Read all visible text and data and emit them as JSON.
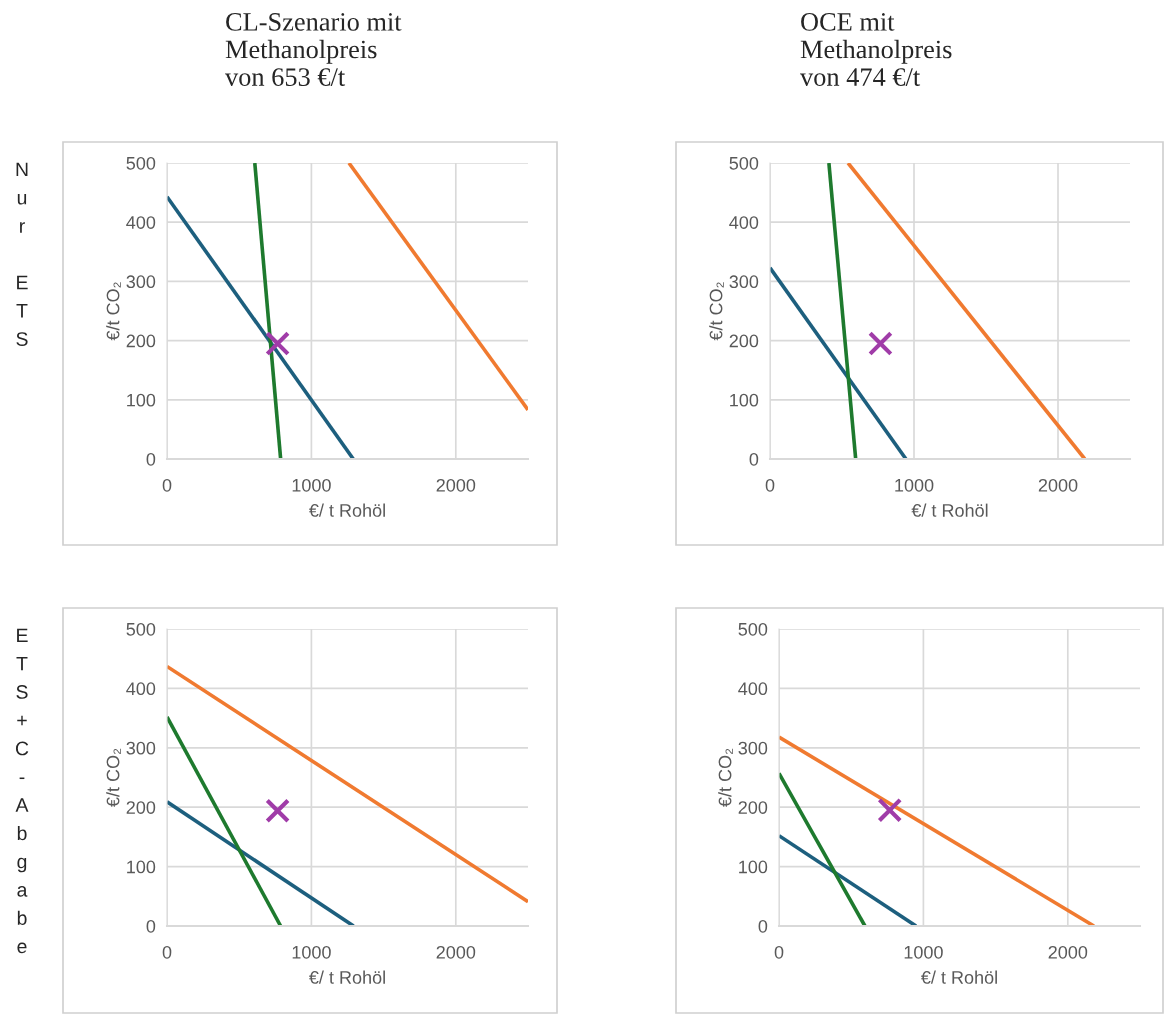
{
  "chart_data": [
    {
      "type": "line",
      "title": "CL-Szenario mit\nMethanolpreis\nvon 653 €/t",
      "xlabel": "€/ t Rohöl",
      "ylabel": "€/t CO₂",
      "annotations": [
        "Nur ETS"
      ],
      "xlim": [
        0,
        2500
      ],
      "ylim": [
        0,
        500
      ],
      "xticks": [
        0,
        1000,
        2000
      ],
      "yticks": [
        0,
        100,
        200,
        300,
        400,
        500
      ],
      "grid": true,
      "line_style": "solid",
      "series": [
        {
          "color": "#1d5f7e",
          "x": [
            0,
            1290
          ],
          "values": [
            443,
            0
          ],
          "marker": "none"
        },
        {
          "color": "#1e7a2e",
          "x": [
            608,
            787
          ],
          "values": [
            500,
            0
          ],
          "marker": "none"
        },
        {
          "color": "#f07a30",
          "x": [
            1260,
            2500
          ],
          "values": [
            500,
            83
          ],
          "marker": "none"
        },
        {
          "type": "scatter",
          "color": "#a03ca8",
          "x": [
            766
          ],
          "values": [
            195
          ],
          "marker": "cross"
        }
      ]
    },
    {
      "type": "line",
      "title": "OCE mit\nMethanolpreis\nvon 474 €/t",
      "xlabel": "€/ t Rohöl",
      "ylabel": "€/t CO₂",
      "xlim": [
        0,
        2500
      ],
      "ylim": [
        0,
        500
      ],
      "xticks": [
        0,
        1000,
        2000
      ],
      "yticks": [
        0,
        100,
        200,
        300,
        400,
        500
      ],
      "grid": true,
      "line_style": "solid",
      "series": [
        {
          "color": "#1d5f7e",
          "x": [
            0,
            944
          ],
          "values": [
            323,
            0
          ],
          "marker": "none"
        },
        {
          "color": "#1e7a2e",
          "x": [
            409,
            595
          ],
          "values": [
            500,
            0
          ],
          "marker": "none"
        },
        {
          "color": "#f07a30",
          "x": [
            542,
            2186
          ],
          "values": [
            500,
            0
          ],
          "marker": "none"
        },
        {
          "type": "scatter",
          "color": "#a03ca8",
          "x": [
            767
          ],
          "values": [
            195
          ],
          "marker": "cross"
        }
      ]
    },
    {
      "type": "line",
      "xlabel": "€/ t Rohöl",
      "ylabel": "€/t CO₂",
      "annotations": [
        "ETS+C-Abgabe"
      ],
      "xlim": [
        0,
        2500
      ],
      "ylim": [
        0,
        500
      ],
      "xticks": [
        0,
        1000,
        2000
      ],
      "yticks": [
        0,
        100,
        200,
        300,
        400,
        500
      ],
      "grid": true,
      "line_style": "solid",
      "series": [
        {
          "color": "#1d5f7e",
          "x": [
            0,
            1292
          ],
          "values": [
            209,
            0
          ],
          "marker": "none"
        },
        {
          "color": "#1e7a2e",
          "x": [
            0,
            787
          ],
          "values": [
            352,
            0
          ],
          "marker": "none"
        },
        {
          "color": "#f07a30",
          "x": [
            0,
            2500
          ],
          "values": [
            437,
            41
          ],
          "marker": "none"
        },
        {
          "type": "scatter",
          "color": "#a03ca8",
          "x": [
            766
          ],
          "values": [
            194
          ],
          "marker": "cross"
        }
      ]
    },
    {
      "type": "line",
      "xlabel": "€/ t Rohöl",
      "ylabel": "€/t CO₂",
      "xlim": [
        0,
        2500
      ],
      "ylim": [
        0,
        500
      ],
      "xticks": [
        0,
        1000,
        2000
      ],
      "yticks": [
        0,
        100,
        200,
        300,
        400,
        500
      ],
      "grid": true,
      "line_style": "solid",
      "series": [
        {
          "color": "#1d5f7e",
          "x": [
            0,
            949
          ],
          "values": [
            152,
            0
          ],
          "marker": "none"
        },
        {
          "color": "#1e7a2e",
          "x": [
            0,
            595
          ],
          "values": [
            257,
            0
          ],
          "marker": "none"
        },
        {
          "color": "#f07a30",
          "x": [
            0,
            2181
          ],
          "values": [
            318,
            0
          ],
          "marker": "none"
        },
        {
          "type": "scatter",
          "color": "#a03ca8",
          "x": [
            767
          ],
          "values": [
            195
          ],
          "marker": "cross"
        }
      ]
    }
  ]
}
